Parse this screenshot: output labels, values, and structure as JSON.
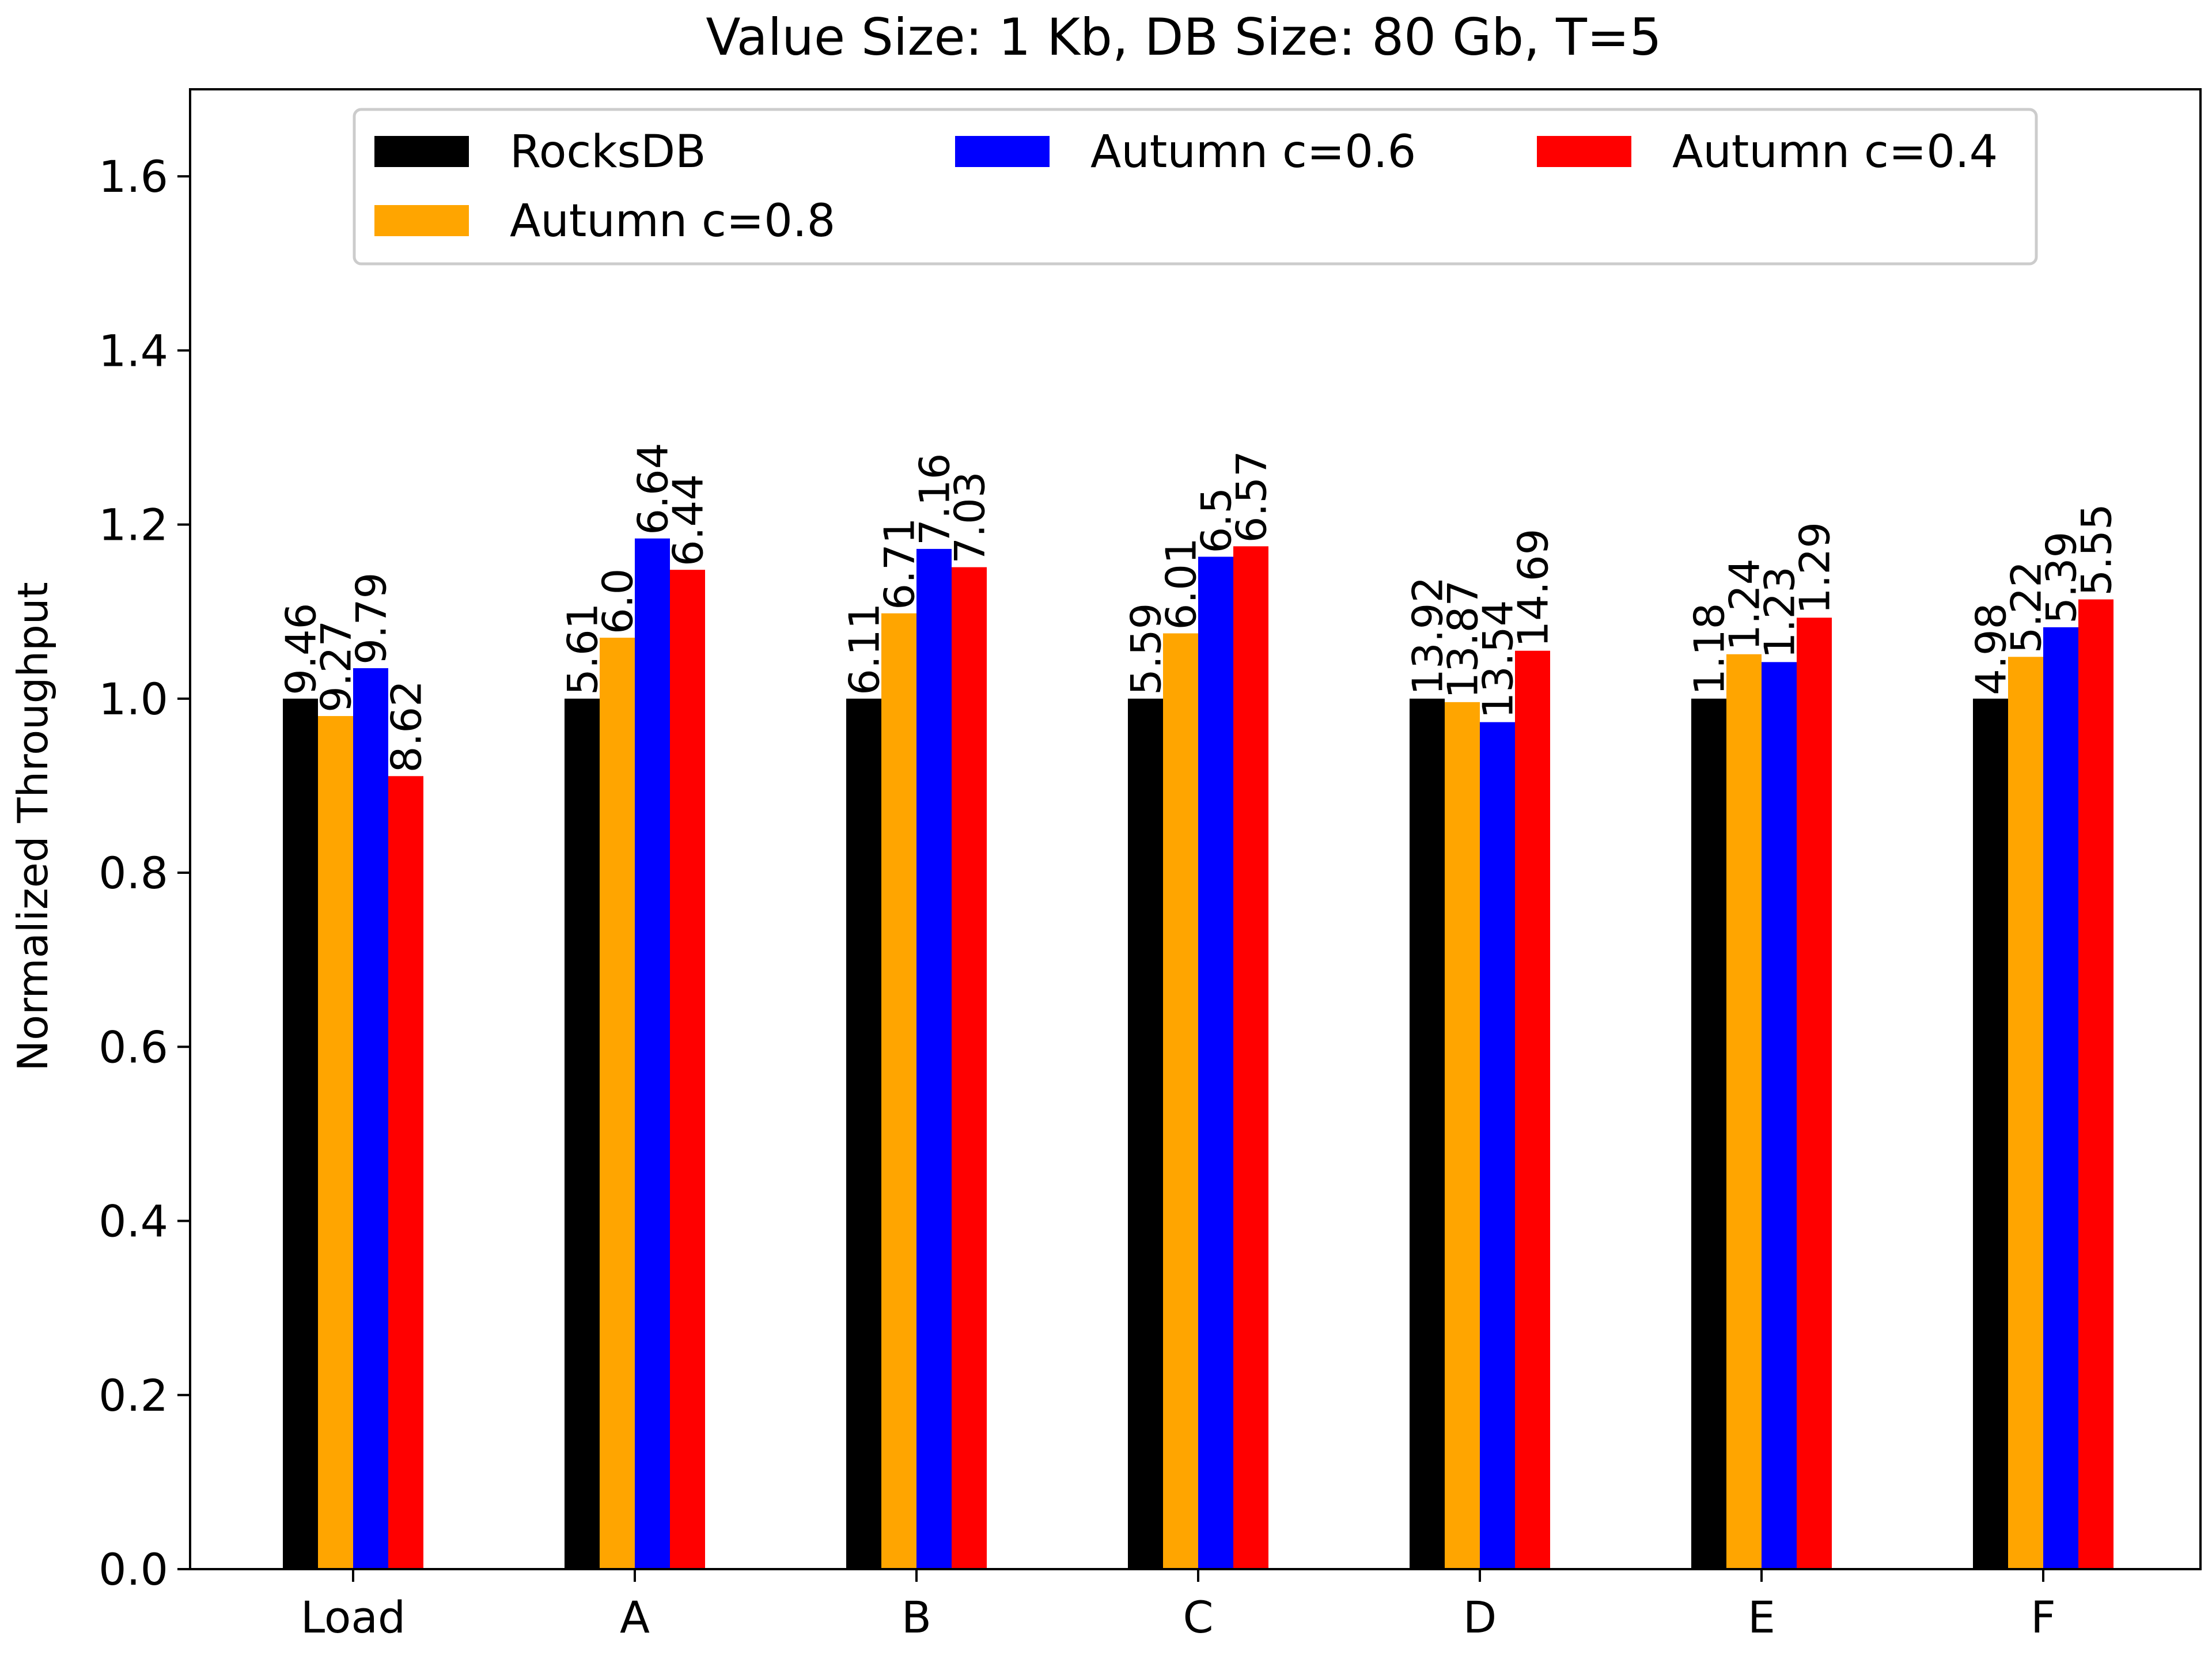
{
  "chart_data": {
    "type": "bar",
    "title": "Value Size: 1 Kb, DB Size: 80 Gb, T=5",
    "xlabel": "",
    "ylabel": "Normalized Throughput",
    "ylim": [
      0.0,
      1.7
    ],
    "yticks": [
      0.0,
      0.2,
      0.4,
      0.6,
      0.8,
      1.0,
      1.2,
      1.4,
      1.6
    ],
    "ytick_labels": [
      "0.0",
      "0.2",
      "0.4",
      "0.6",
      "0.8",
      "1.0",
      "1.2",
      "1.4",
      "1.6"
    ],
    "categories": [
      "Load",
      "A",
      "B",
      "C",
      "D",
      "E",
      "F"
    ],
    "grid": false,
    "legend_position": "top",
    "series": [
      {
        "name": "RocksDB",
        "color": "#000000",
        "values": [
          1.0,
          1.0,
          1.0,
          1.0,
          1.0,
          1.0,
          1.0
        ],
        "labels": [
          "9.46",
          "5.61",
          "6.11",
          "5.59",
          "13.92",
          "1.18",
          "4.98"
        ]
      },
      {
        "name": "Autumn c=0.8",
        "color": "#ffa500",
        "values": [
          0.98,
          1.07,
          1.098,
          1.075,
          0.996,
          1.051,
          1.048
        ],
        "labels": [
          "9.27",
          "6.0",
          "6.71",
          "6.01",
          "13.87",
          "1.24",
          "5.22"
        ]
      },
      {
        "name": "Autumn c=0.6",
        "color": "#0000ff",
        "values": [
          1.035,
          1.184,
          1.172,
          1.163,
          0.973,
          1.042,
          1.082
        ],
        "labels": [
          "9.79",
          "6.64",
          "7.16",
          "6.5",
          "13.54",
          "1.23",
          "5.39"
        ]
      },
      {
        "name": "Autumn c=0.4",
        "color": "#ff0000",
        "values": [
          0.911,
          1.148,
          1.151,
          1.175,
          1.055,
          1.093,
          1.114
        ],
        "labels": [
          "8.62",
          "6.44",
          "7.03",
          "6.57",
          "14.69",
          "1.29",
          "5.55"
        ]
      }
    ],
    "legend_order": [
      0,
      2,
      3,
      1
    ]
  }
}
